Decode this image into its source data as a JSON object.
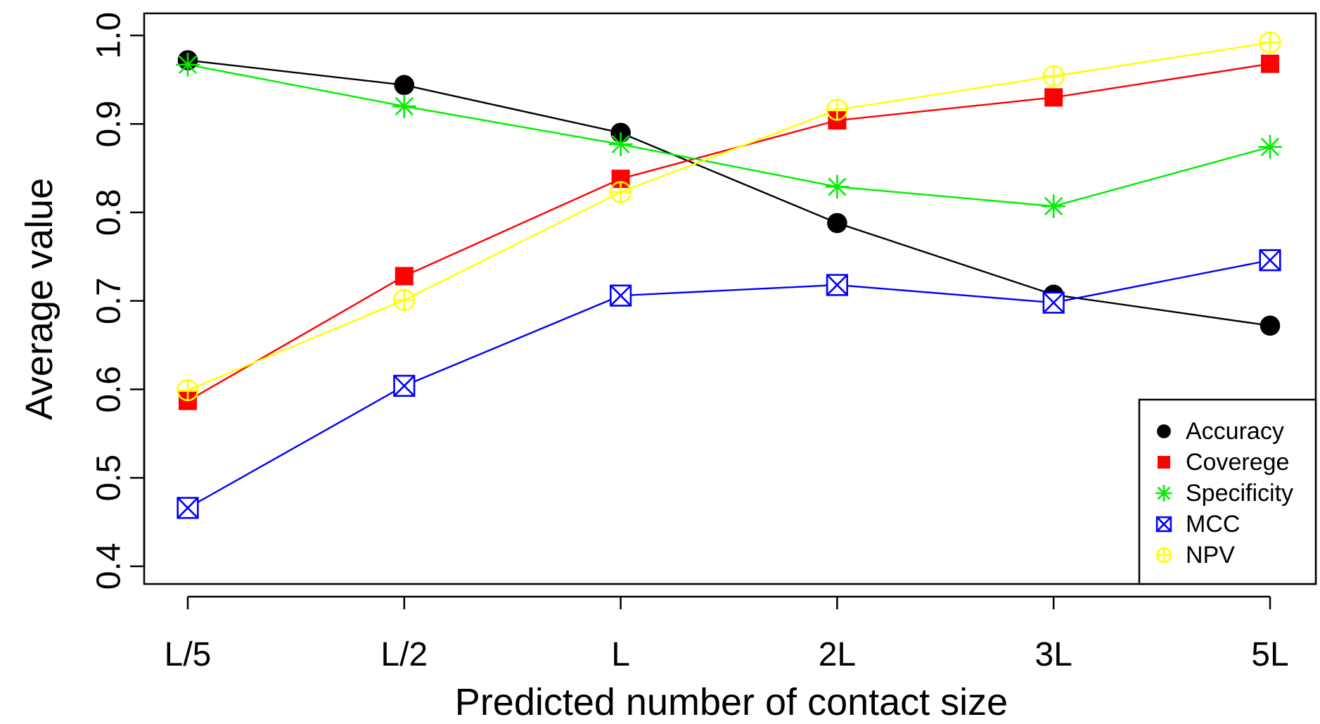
{
  "chart_data": {
    "type": "line",
    "title": "",
    "xlabel": "Predicted number of contact size",
    "ylabel": "Average value",
    "categories": [
      "L/5",
      "L/2",
      "L",
      "2L",
      "3L",
      "5L"
    ],
    "ylim": [
      0.38,
      1.025
    ],
    "yticks": [
      0.4,
      0.5,
      0.6,
      0.7,
      0.8,
      0.9,
      1.0
    ],
    "ytick_labels": [
      "0.4",
      "0.5",
      "0.6",
      "0.7",
      "0.8",
      "0.9",
      "1.0"
    ],
    "grid": false,
    "legend_position": "bottom-right",
    "series": [
      {
        "name": "Accuracy",
        "color": "#000000",
        "marker": "filled-circle",
        "values": [
          0.972,
          0.944,
          0.89,
          0.788,
          0.707,
          0.672
        ]
      },
      {
        "name": "Coverege",
        "color": "#ff0000",
        "marker": "filled-square",
        "values": [
          0.587,
          0.728,
          0.838,
          0.904,
          0.93,
          0.968
        ]
      },
      {
        "name": "Specificity",
        "color": "#00ee00",
        "marker": "asterisk",
        "values": [
          0.967,
          0.92,
          0.877,
          0.829,
          0.807,
          0.874
        ]
      },
      {
        "name": "MCC",
        "color": "#0000ff",
        "marker": "boxed-x",
        "values": [
          0.466,
          0.604,
          0.706,
          0.718,
          0.698,
          0.746
        ]
      },
      {
        "name": "NPV",
        "color": "#ffff00",
        "marker": "circled-plus",
        "values": [
          0.599,
          0.701,
          0.823,
          0.916,
          0.954,
          0.992
        ]
      }
    ]
  }
}
